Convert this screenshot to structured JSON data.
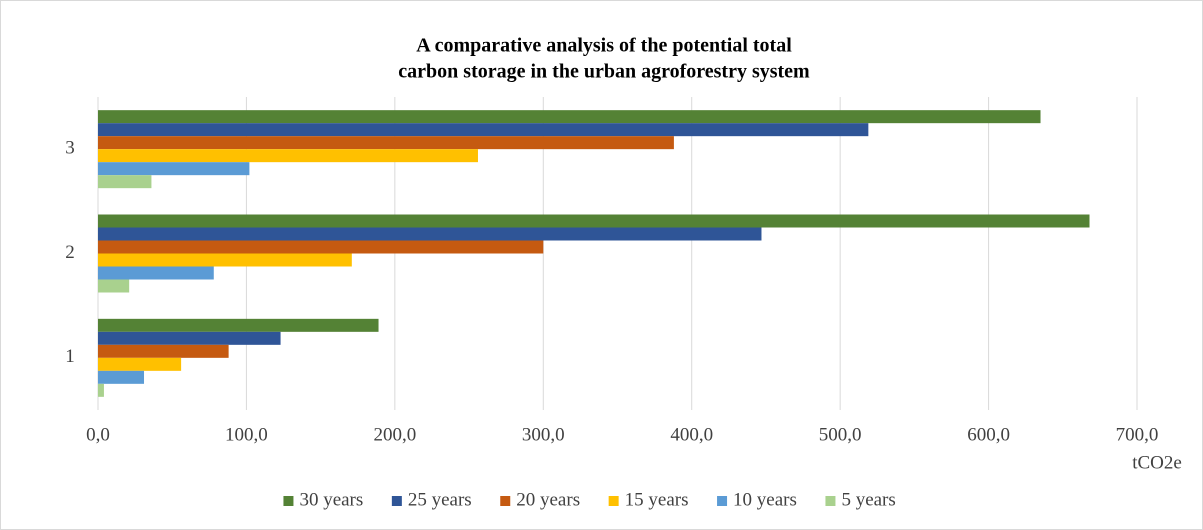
{
  "chart_data": {
    "type": "hbar",
    "title": [
      "A comparative analysis of the potential total",
      "carbon storage in the urban agroforestry system"
    ],
    "x_label": "tCO2e",
    "categories": [
      "1",
      "2",
      "3"
    ],
    "series": [
      {
        "name": "30 years",
        "color": "#548235",
        "values": [
          189,
          668,
          635
        ]
      },
      {
        "name": "25 years",
        "color": "#2f5597",
        "values": [
          123,
          447,
          519
        ]
      },
      {
        "name": "20 years",
        "color": "#c55a11",
        "values": [
          88,
          300,
          388
        ]
      },
      {
        "name": "15 years",
        "color": "#ffc000",
        "values": [
          56,
          171,
          256
        ]
      },
      {
        "name": "10 years",
        "color": "#5b9bd5",
        "values": [
          31,
          78,
          102
        ]
      },
      {
        "name": "5 years",
        "color": "#a9d18e",
        "values": [
          4,
          21,
          36
        ]
      }
    ],
    "xlim": [
      0,
      700
    ],
    "xticks": [
      {
        "value": 0,
        "label": "0,0"
      },
      {
        "value": 100,
        "label": "100,0"
      },
      {
        "value": 200,
        "label": "200,0"
      },
      {
        "value": 300,
        "label": "300,0"
      },
      {
        "value": 400,
        "label": "400,0"
      },
      {
        "value": 500,
        "label": "500,0"
      },
      {
        "value": 600,
        "label": "600,0"
      },
      {
        "value": 700,
        "label": "700,0"
      }
    ],
    "grid": true,
    "legend": "bottom"
  }
}
